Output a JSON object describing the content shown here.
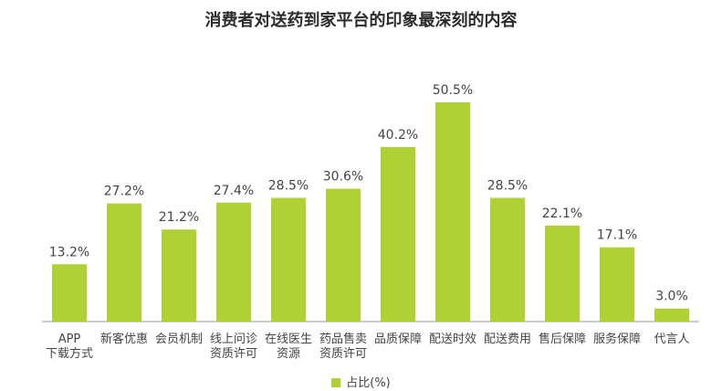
{
  "chart_data": {
    "type": "bar",
    "title": "消费者对送药到家平台的印象最深刻的内容",
    "categories": [
      [
        "APP",
        "下载方式"
      ],
      [
        "新客优惠"
      ],
      [
        "会员机制"
      ],
      [
        "线上问诊",
        "资质许可"
      ],
      [
        "在线医生",
        "资源"
      ],
      [
        "药品售卖",
        "资质许可"
      ],
      [
        "品质保障"
      ],
      [
        "配送时效"
      ],
      [
        "配送费用"
      ],
      [
        "售后保障"
      ],
      [
        "服务保障"
      ],
      [
        "代言人"
      ]
    ],
    "values": [
      13.2,
      27.2,
      21.2,
      27.4,
      28.5,
      30.6,
      40.2,
      50.5,
      28.5,
      22.1,
      17.1,
      3.0
    ],
    "data_labels": [
      "13.2%",
      "27.2%",
      "21.2%",
      "27.4%",
      "28.5%",
      "30.6%",
      "40.2%",
      "50.5%",
      "28.5%",
      "22.1%",
      "17.1%",
      "3.0%"
    ],
    "series": [
      {
        "name": "占比(%)"
      }
    ],
    "ylim": [
      0,
      50.5
    ],
    "grid": false,
    "legend_position": "bottom",
    "bar_color": "#b0d136",
    "axis_color": "#999999",
    "label_color": "#444444"
  }
}
